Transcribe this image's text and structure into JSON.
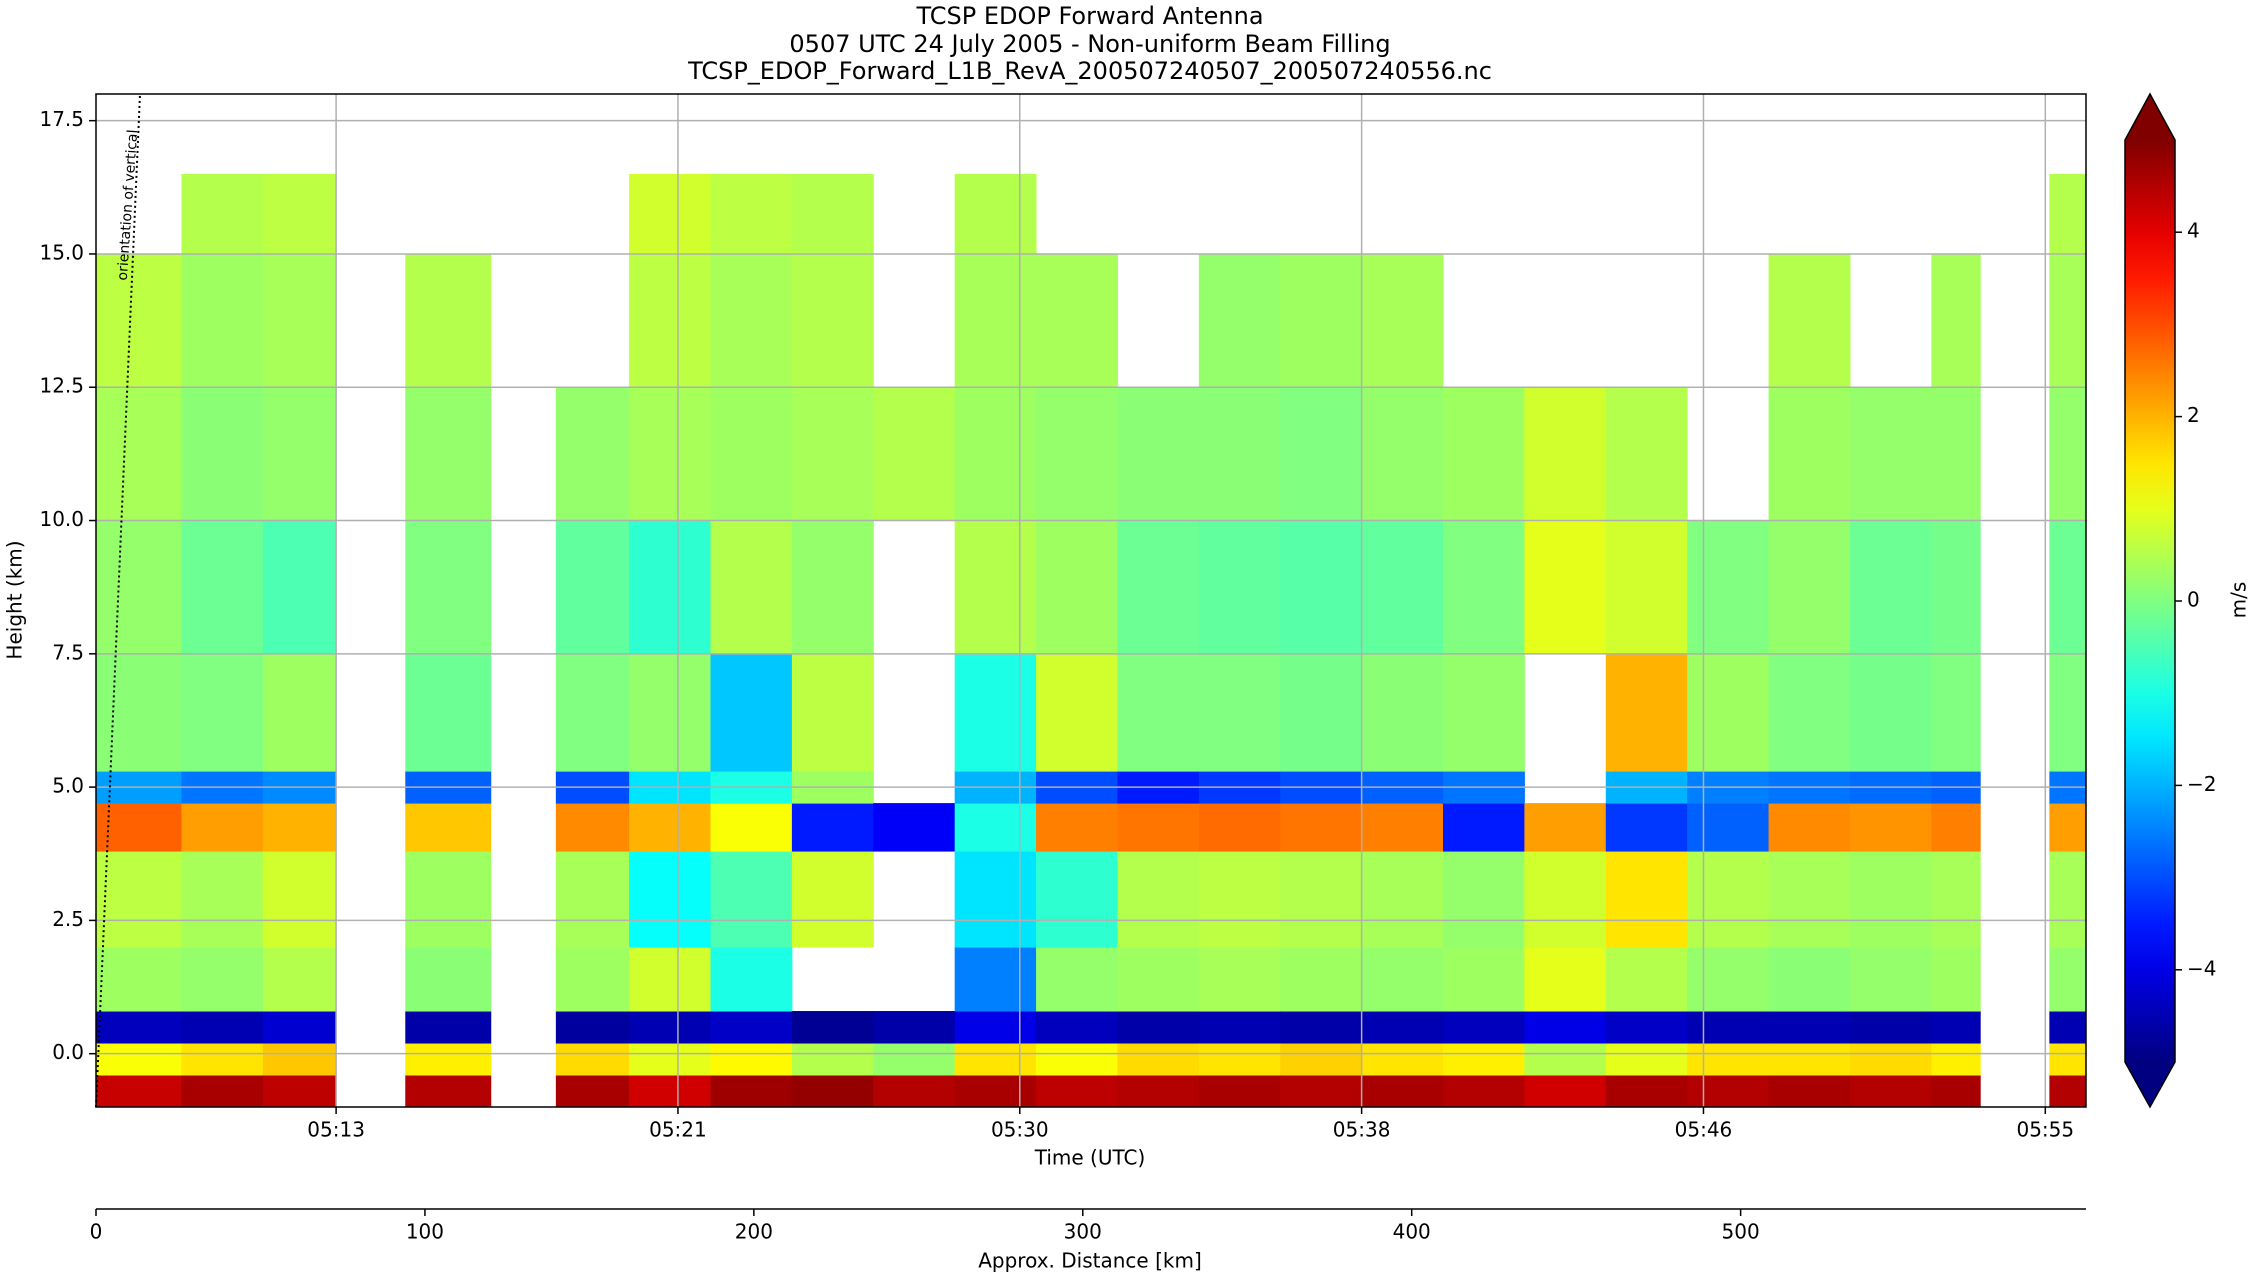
{
  "chart_data": {
    "type": "heatmap",
    "title": "TCSP EDOP Forward Antenna",
    "subtitle": "0507 UTC 24 July 2005 - Non-uniform Beam Filling",
    "filename": "TCSP_EDOP_Forward_L1B_RevA_200507240507_200507240556.nc",
    "annotation": "orientation of vertical",
    "xlabel": "Time (UTC)",
    "ylabel": "Height (km)",
    "x2label": "Approx. Distance [km]",
    "colorbar_label": "m/s",
    "colormap": "jet",
    "grid": true,
    "xlim": [
      306.9,
      355.8
    ],
    "xticks": [
      {
        "value": 312.8,
        "label": "05:13"
      },
      {
        "value": 321.2,
        "label": "05:21"
      },
      {
        "value": 329.6,
        "label": "05:30"
      },
      {
        "value": 338.0,
        "label": "05:38"
      },
      {
        "value": 346.4,
        "label": "05:46"
      },
      {
        "value": 354.8,
        "label": "05:55"
      }
    ],
    "ylim": [
      -1,
      18
    ],
    "yticks": [
      {
        "value": 0,
        "label": "0.0"
      },
      {
        "value": 2.5,
        "label": "2.5"
      },
      {
        "value": 5,
        "label": "5.0"
      },
      {
        "value": 7.5,
        "label": "7.5"
      },
      {
        "value": 10,
        "label": "10.0"
      },
      {
        "value": 12.5,
        "label": "12.5"
      },
      {
        "value": 15,
        "label": "15.0"
      },
      {
        "value": 17.5,
        "label": "17.5"
      }
    ],
    "x2lim": [
      0,
      605
    ],
    "x2ticks": [
      0,
      100,
      200,
      300,
      400,
      500
    ],
    "clim": [
      -5,
      5
    ],
    "cticks": [
      {
        "value": -4,
        "label": "−4"
      },
      {
        "value": -2,
        "label": "−2"
      },
      0,
      2,
      4
    ],
    "x_edges": [
      306.9,
      309,
      311,
      312.8,
      314.5,
      316.6,
      318.2,
      320,
      322,
      324,
      326,
      328,
      330,
      332,
      334,
      336,
      338,
      340,
      342,
      344,
      346,
      348,
      350,
      352,
      353.2,
      354.9,
      355.8
    ],
    "y_edges": [
      -1,
      -0.4,
      0.2,
      0.8,
      2.0,
      3.8,
      4.7,
      5.3,
      7.5,
      10,
      12.5,
      15,
      16.5
    ],
    "values": [
      [
        4.3,
        1.2,
        -4.4,
        0.3,
        0.6,
        2.8,
        -2.2,
        0.1,
        0.2,
        0.4,
        0.6,
        null
      ],
      [
        4.6,
        1.5,
        -4.5,
        0.2,
        0.4,
        2.2,
        -2.6,
        0.0,
        -0.2,
        0.1,
        0.3,
        0.5
      ],
      [
        4.4,
        1.8,
        -4.2,
        0.5,
        0.8,
        2.0,
        -2.4,
        0.3,
        -0.5,
        0.2,
        0.4,
        0.6
      ],
      [
        null,
        null,
        null,
        null,
        null,
        null,
        null,
        null,
        null,
        null,
        null,
        null
      ],
      [
        4.5,
        1.4,
        -4.6,
        0.1,
        0.3,
        1.8,
        -2.8,
        -0.2,
        0.0,
        0.2,
        0.5,
        null
      ],
      [
        null,
        null,
        null,
        null,
        null,
        null,
        null,
        null,
        null,
        null,
        null,
        null
      ],
      [
        4.6,
        1.6,
        -4.7,
        0.3,
        0.4,
        2.4,
        -3.0,
        0.0,
        -0.3,
        0.2,
        null,
        null
      ],
      [
        4.2,
        1.0,
        -4.5,
        0.8,
        -1.2,
        2.0,
        -1.5,
        0.2,
        -0.8,
        0.4,
        0.6,
        0.8
      ],
      [
        4.7,
        1.3,
        -4.3,
        -1.0,
        -0.5,
        1.2,
        -1.0,
        -1.8,
        0.5,
        0.3,
        0.4,
        0.6
      ],
      [
        4.8,
        0.5,
        -4.8,
        null,
        0.8,
        -3.5,
        0.3,
        0.6,
        0.2,
        0.4,
        0.5,
        0.5
      ],
      [
        4.5,
        0.2,
        -4.6,
        null,
        null,
        -3.8,
        null,
        null,
        null,
        0.5,
        null,
        null
      ],
      [
        4.6,
        1.5,
        -4.0,
        -2.5,
        -1.5,
        -1.0,
        -2.0,
        -1.0,
        0.5,
        0.3,
        0.4,
        0.5
      ],
      [
        4.4,
        1.2,
        -4.4,
        0.2,
        -0.8,
        2.5,
        -3.0,
        0.8,
        0.3,
        0.2,
        0.4,
        null
      ],
      [
        4.5,
        1.6,
        -4.6,
        0.3,
        0.5,
        2.6,
        -3.5,
        0.0,
        -0.2,
        0.1,
        null,
        null
      ],
      [
        4.6,
        1.5,
        -4.5,
        0.4,
        0.6,
        2.7,
        -3.2,
        0.0,
        -0.3,
        0.1,
        0.2,
        null
      ],
      [
        4.5,
        1.7,
        -4.6,
        0.3,
        0.5,
        2.6,
        -3.0,
        -0.1,
        -0.4,
        0.0,
        0.3,
        null
      ],
      [
        4.6,
        1.5,
        -4.5,
        0.2,
        0.4,
        2.5,
        -2.8,
        0.1,
        -0.3,
        0.2,
        0.4,
        null
      ],
      [
        4.5,
        1.4,
        -4.4,
        0.3,
        0.2,
        -3.5,
        -2.6,
        0.2,
        0.0,
        0.3,
        null,
        null
      ],
      [
        4.2,
        0.5,
        -4.0,
        1.0,
        0.8,
        2.2,
        null,
        null,
        1.0,
        0.8,
        null,
        null
      ],
      [
        4.6,
        1.0,
        -4.3,
        0.5,
        1.5,
        -3.2,
        -2.0,
        2.0,
        0.8,
        0.5,
        null,
        null
      ],
      [
        4.5,
        1.5,
        -4.5,
        0.2,
        0.5,
        -2.8,
        -2.5,
        0.3,
        0.0,
        null,
        null,
        null
      ],
      [
        4.6,
        1.5,
        -4.5,
        0.1,
        0.4,
        2.4,
        -2.6,
        0.0,
        0.2,
        0.3,
        0.5,
        null
      ],
      [
        4.5,
        1.6,
        -4.6,
        0.2,
        0.3,
        2.3,
        -2.7,
        -0.1,
        -0.2,
        0.2,
        null,
        null
      ],
      [
        4.6,
        1.4,
        -4.5,
        0.3,
        0.4,
        2.5,
        -2.8,
        0.0,
        -0.1,
        0.2,
        0.4,
        null
      ],
      [
        null,
        null,
        null,
        null,
        null,
        null,
        null,
        null,
        null,
        null,
        null,
        null
      ],
      [
        4.5,
        1.5,
        -4.5,
        0.2,
        0.4,
        2.2,
        -2.6,
        0.0,
        -0.2,
        0.2,
        0.4,
        0.5
      ]
    ]
  }
}
